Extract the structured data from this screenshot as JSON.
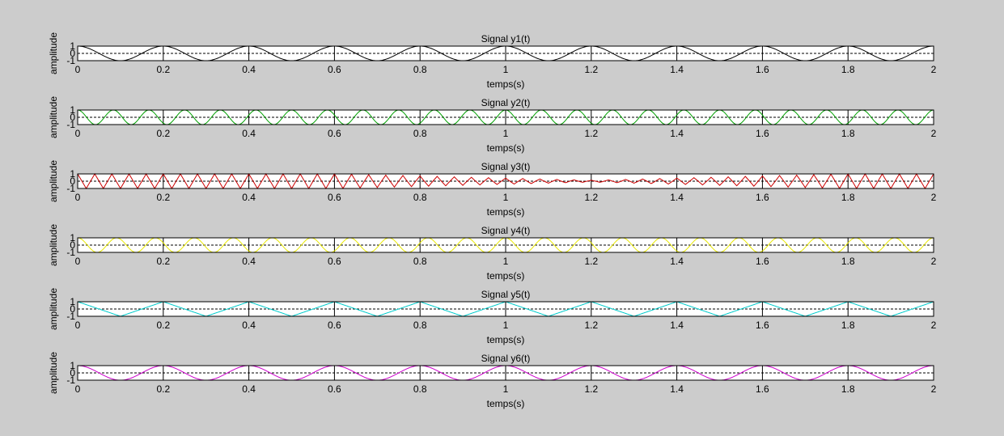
{
  "chart_data": [
    {
      "type": "line",
      "title": "Signal y1(t)",
      "xlabel": "temps(s)",
      "ylabel": "amplitude",
      "xlim": [
        0,
        2
      ],
      "ylim": [
        -1,
        1
      ],
      "xticks": [
        "0",
        "0.2",
        "0.4",
        "0.6",
        "0.8",
        "1",
        "1.2",
        "1.4",
        "1.6",
        "1.8",
        "2"
      ],
      "yticks": [
        "-1",
        "0",
        "1"
      ],
      "grid": true,
      "zero_line": "dashed",
      "series": [
        {
          "color": "#000000",
          "waveform": "cos",
          "frequency_hz": 5,
          "amplitude": 1
        }
      ]
    },
    {
      "type": "line",
      "title": "Signal y2(t)",
      "xlabel": "temps(s)",
      "ylabel": "amplitude",
      "xlim": [
        0,
        2
      ],
      "ylim": [
        -1,
        1
      ],
      "xticks": [
        "0",
        "0.2",
        "0.4",
        "0.6",
        "0.8",
        "1",
        "1.2",
        "1.4",
        "1.6",
        "1.8",
        "2"
      ],
      "yticks": [
        "-1",
        "0",
        "1"
      ],
      "grid": true,
      "zero_line": "dashed",
      "series": [
        {
          "color": "#00a000",
          "waveform": "cos",
          "frequency_hz": 12,
          "amplitude": 1
        }
      ]
    },
    {
      "type": "line",
      "title": "Signal y3(t)",
      "xlabel": "temps(s)",
      "ylabel": "amplitude",
      "xlim": [
        0,
        2
      ],
      "ylim": [
        -1,
        1
      ],
      "xticks": [
        "0",
        "0.2",
        "0.4",
        "0.6",
        "0.8",
        "1",
        "1.2",
        "1.4",
        "1.6",
        "1.8",
        "2"
      ],
      "yticks": [
        "-1",
        "0",
        "1"
      ],
      "grid": true,
      "zero_line": "dashed",
      "series": [
        {
          "color": "#cc0000",
          "waveform": "aliased-cos",
          "frequency_hz": 25,
          "amplitude": 1,
          "note_visual": "amplitude envelope shrinks near t=1.2"
        }
      ]
    },
    {
      "type": "line",
      "title": "Signal y4(t)",
      "xlabel": "temps(s)",
      "ylabel": "amplitude",
      "xlim": [
        0,
        2
      ],
      "ylim": [
        -1,
        1
      ],
      "xticks": [
        "0",
        "0.2",
        "0.4",
        "0.6",
        "0.8",
        "1",
        "1.2",
        "1.4",
        "1.6",
        "1.8",
        "2"
      ],
      "yticks": [
        "-1",
        "0",
        "1"
      ],
      "grid": true,
      "zero_line": "dashed",
      "series": [
        {
          "color": "#e8e800",
          "waveform": "cos",
          "frequency_hz": 11,
          "amplitude": 1
        }
      ]
    },
    {
      "type": "line",
      "title": "Signal y5(t)",
      "xlabel": "temps(s)",
      "ylabel": "amplitude",
      "xlim": [
        0,
        2
      ],
      "ylim": [
        -1,
        1
      ],
      "xticks": [
        "0",
        "0.2",
        "0.4",
        "0.6",
        "0.8",
        "1",
        "1.2",
        "1.4",
        "1.6",
        "1.8",
        "2"
      ],
      "yticks": [
        "-1",
        "0",
        "1"
      ],
      "grid": true,
      "zero_line": "dashed",
      "series": [
        {
          "color": "#00cccc",
          "waveform": "triangle",
          "frequency_hz": 5,
          "amplitude": 1
        }
      ]
    },
    {
      "type": "line",
      "title": "Signal y6(t)",
      "xlabel": "temps(s)",
      "ylabel": "amplitude",
      "xlim": [
        0,
        2
      ],
      "ylim": [
        -1,
        1
      ],
      "xticks": [
        "0",
        "0.2",
        "0.4",
        "0.6",
        "0.8",
        "1",
        "1.2",
        "1.4",
        "1.6",
        "1.8",
        "2"
      ],
      "yticks": [
        "-1",
        "0",
        "1"
      ],
      "grid": true,
      "zero_line": "dashed",
      "series": [
        {
          "color": "#cc00cc",
          "waveform": "cos",
          "frequency_hz": 5,
          "amplitude": 1
        }
      ]
    }
  ]
}
